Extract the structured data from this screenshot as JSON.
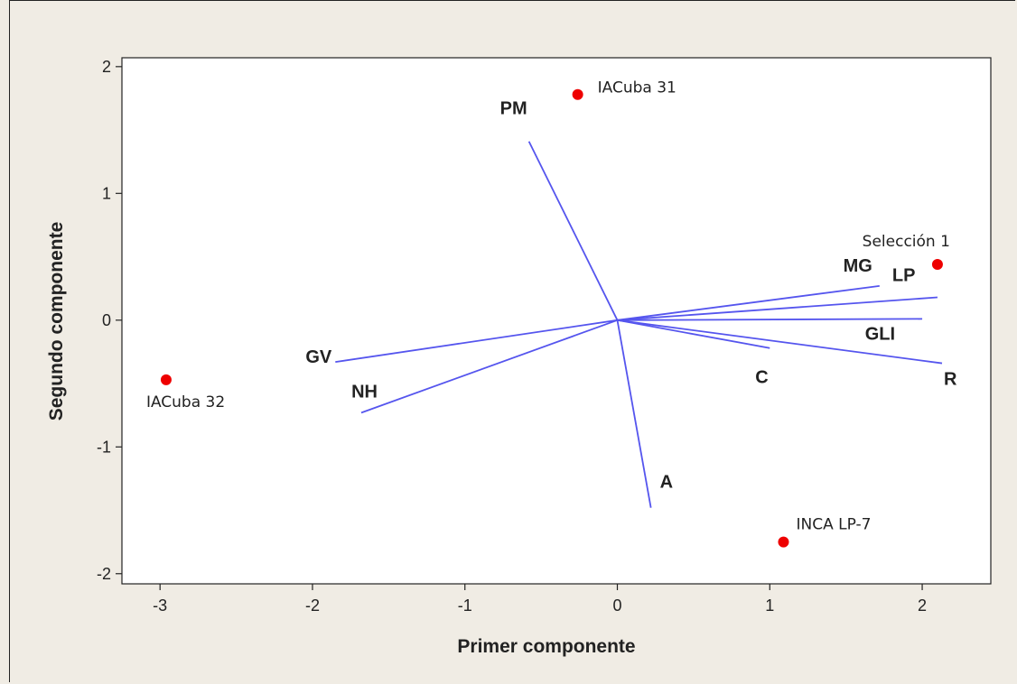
{
  "chart_data": {
    "type": "biplot",
    "xlabel": "Primer componente",
    "ylabel": "Segundo componente",
    "xlim": [
      -3.25,
      2.45
    ],
    "ylim": [
      -2.08,
      2.07
    ],
    "xticks": [
      -3,
      -2,
      -1,
      0,
      1,
      2
    ],
    "yticks": [
      -2,
      -1,
      0,
      1,
      2
    ],
    "grid": false,
    "vector_color": "#5555ee",
    "point_color": "#ee0000",
    "vectors": [
      {
        "name": "PM",
        "x": -0.58,
        "y": 1.41
      },
      {
        "name": "MG",
        "x": 1.72,
        "y": 0.27
      },
      {
        "name": "LP",
        "x": 2.1,
        "y": 0.18
      },
      {
        "name": "GLI",
        "x": 2.0,
        "y": 0.01
      },
      {
        "name": "R",
        "x": 2.13,
        "y": -0.34
      },
      {
        "name": "C",
        "x": 1.0,
        "y": -0.22
      },
      {
        "name": "GV",
        "x": -1.85,
        "y": -0.33
      },
      {
        "name": "NH",
        "x": -1.68,
        "y": -0.73
      },
      {
        "name": "A",
        "x": 0.22,
        "y": -1.48
      }
    ],
    "points": [
      {
        "name": "IACuba 31",
        "x": -0.26,
        "y": 1.78
      },
      {
        "name": "Selección 1",
        "x": 2.1,
        "y": 0.44
      },
      {
        "name": "IACuba 32",
        "x": -2.96,
        "y": -0.47
      },
      {
        "name": "INCA LP-7",
        "x": 1.09,
        "y": -1.75
      }
    ]
  }
}
